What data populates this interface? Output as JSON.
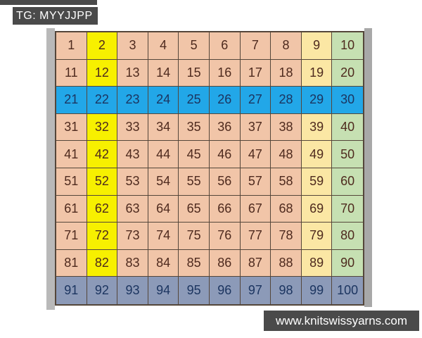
{
  "watermarks": {
    "top_label": "TG: MYYJJPP",
    "bottom_label": "www.knitswissyarns.com"
  },
  "palette": {
    "page_bg": "#ffffff",
    "label_bg": "#4a4a4a",
    "label_text": "#ffffff",
    "cell_border": "#54463a",
    "frame_left": "#b9b9b9",
    "frame_right": "#a8a8a8",
    "text_warm": "#4e2a1e",
    "text_cool": "#1c3560",
    "peach": "#f1c5a8",
    "yellow": "#f7f000",
    "blue": "#22a7e8",
    "cream": "#fbe7a4",
    "green": "#c6e0b2",
    "slate": "#8c9ab8"
  },
  "chart_data": {
    "type": "table",
    "title": "Hundred chart 1-100 with highlighted columns 2, 9, 10 and rows 21-30, 91-100",
    "rows": [
      [
        1,
        2,
        3,
        4,
        5,
        6,
        7,
        8,
        9,
        10
      ],
      [
        11,
        12,
        13,
        14,
        15,
        16,
        17,
        18,
        19,
        20
      ],
      [
        21,
        22,
        23,
        24,
        25,
        26,
        27,
        28,
        29,
        30
      ],
      [
        31,
        32,
        33,
        34,
        35,
        36,
        37,
        38,
        39,
        40
      ],
      [
        41,
        42,
        43,
        44,
        45,
        46,
        47,
        48,
        49,
        50
      ],
      [
        51,
        52,
        53,
        54,
        55,
        56,
        57,
        58,
        59,
        60
      ],
      [
        61,
        62,
        63,
        64,
        65,
        66,
        67,
        68,
        69,
        70
      ],
      [
        71,
        72,
        73,
        74,
        75,
        76,
        77,
        78,
        79,
        80
      ],
      [
        81,
        82,
        83,
        84,
        85,
        86,
        87,
        88,
        89,
        90
      ],
      [
        91,
        92,
        93,
        94,
        95,
        96,
        97,
        98,
        99,
        100
      ]
    ],
    "cell_colors": [
      [
        "peach",
        "yellow",
        "peach",
        "peach",
        "peach",
        "peach",
        "peach",
        "peach",
        "cream",
        "green"
      ],
      [
        "peach",
        "yellow",
        "peach",
        "peach",
        "peach",
        "peach",
        "peach",
        "peach",
        "cream",
        "green"
      ],
      [
        "blue",
        "blue",
        "blue",
        "blue",
        "blue",
        "blue",
        "blue",
        "blue",
        "blue",
        "blue"
      ],
      [
        "peach",
        "yellow",
        "peach",
        "peach",
        "peach",
        "peach",
        "peach",
        "peach",
        "cream",
        "green"
      ],
      [
        "peach",
        "yellow",
        "peach",
        "peach",
        "peach",
        "peach",
        "peach",
        "peach",
        "cream",
        "green"
      ],
      [
        "peach",
        "yellow",
        "peach",
        "peach",
        "peach",
        "peach",
        "peach",
        "peach",
        "cream",
        "green"
      ],
      [
        "peach",
        "yellow",
        "peach",
        "peach",
        "peach",
        "peach",
        "peach",
        "peach",
        "cream",
        "green"
      ],
      [
        "peach",
        "yellow",
        "peach",
        "peach",
        "peach",
        "peach",
        "peach",
        "peach",
        "cream",
        "green"
      ],
      [
        "peach",
        "yellow",
        "peach",
        "peach",
        "peach",
        "peach",
        "peach",
        "peach",
        "cream",
        "green"
      ],
      [
        "slate",
        "slate",
        "slate",
        "slate",
        "slate",
        "slate",
        "slate",
        "slate",
        "slate",
        "slate"
      ]
    ]
  }
}
